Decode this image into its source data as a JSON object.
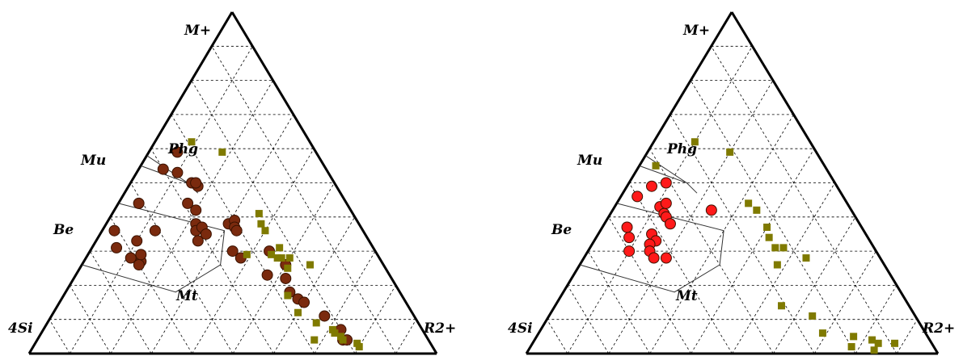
{
  "chart_data": [
    {
      "type": "scatter",
      "ternary": true,
      "grid": true,
      "vertex_labels": {
        "top": "M+",
        "left": "4Si",
        "right": "R2+"
      },
      "field_labels": [
        "Mu",
        "Phg",
        "Be",
        "Mt"
      ],
      "series": [
        {
          "marker": "circle",
          "color": "#7a2a0e",
          "points": [
            [
              0.54,
              0.06
            ],
            [
              0.59,
              0.07
            ],
            [
              0.53,
              0.1
            ],
            [
              0.5,
              0.15
            ],
            [
              0.49,
              0.17
            ],
            [
              0.5,
              0.16
            ],
            [
              0.44,
              0.17
            ],
            [
              0.42,
              0.2
            ],
            [
              0.38,
              0.22
            ],
            [
              0.36,
              0.23
            ],
            [
              0.37,
              0.24
            ],
            [
              0.33,
              0.25
            ],
            [
              0.35,
              0.26
            ],
            [
              0.38,
              0.3
            ],
            [
              0.39,
              0.31
            ],
            [
              0.37,
              0.32
            ],
            [
              0.28,
              0.38
            ],
            [
              0.36,
              0.33
            ],
            [
              0.3,
              0.35
            ],
            [
              0.3,
              0.44
            ],
            [
              0.26,
              0.5
            ],
            [
              0.23,
              0.47
            ],
            [
              0.22,
              0.52
            ],
            [
              0.18,
              0.55
            ],
            [
              0.16,
              0.58
            ],
            [
              0.15,
              0.6
            ],
            [
              0.11,
              0.67
            ],
            [
              0.07,
              0.73
            ],
            [
              0.04,
              0.75
            ],
            [
              0.04,
              0.76
            ],
            [
              0.44,
              0.05
            ],
            [
              0.33,
              0.1
            ],
            [
              0.36,
              0.13
            ],
            [
              0.28,
              0.11
            ],
            [
              0.27,
              0.14
            ],
            [
              0.29,
              0.13
            ],
            [
              0.31,
              0.06
            ],
            [
              0.26,
              0.14
            ],
            [
              0.36,
              0.03
            ]
          ]
        },
        {
          "marker": "square",
          "color": "#7f7a00",
          "points": [
            [
              0.62,
              0.09
            ],
            [
              0.59,
              0.18
            ],
            [
              0.41,
              0.36
            ],
            [
              0.38,
              0.38
            ],
            [
              0.36,
              0.4
            ],
            [
              0.31,
              0.46
            ],
            [
              0.28,
              0.47
            ],
            [
              0.29,
              0.45
            ],
            [
              0.28,
              0.5
            ],
            [
              0.25,
              0.51
            ],
            [
              0.17,
              0.55
            ],
            [
              0.12,
              0.6
            ],
            [
              0.09,
              0.66
            ],
            [
              0.04,
              0.68
            ],
            [
              0.06,
              0.72
            ],
            [
              0.05,
              0.74
            ],
            [
              0.04,
              0.75
            ],
            [
              0.02,
              0.8
            ],
            [
              0.26,
              0.56
            ],
            [
              0.07,
              0.71
            ],
            [
              0.03,
              0.79
            ],
            [
              0.29,
              0.39
            ],
            [
              0.28,
              0.48
            ]
          ]
        }
      ]
    },
    {
      "type": "scatter",
      "ternary": true,
      "grid": true,
      "vertex_labels": {
        "top": "M+",
        "left": "4Si",
        "right": "R2+"
      },
      "field_labels": [
        "Mu",
        "Phg",
        "Be",
        "Mt"
      ],
      "series": [
        {
          "marker": "circle",
          "color": "#ff1a1a",
          "points": [
            [
              0.5,
              0.09
            ],
            [
              0.49,
              0.06
            ],
            [
              0.46,
              0.04
            ],
            [
              0.43,
              0.11
            ],
            [
              0.41,
              0.13
            ],
            [
              0.4,
              0.14
            ],
            [
              0.37,
              0.06
            ],
            [
              0.35,
              0.13
            ],
            [
              0.33,
              0.15
            ],
            [
              0.32,
              0.14
            ],
            [
              0.3,
              0.15
            ],
            [
              0.28,
              0.17
            ],
            [
              0.28,
              0.2
            ],
            [
              0.42,
              0.24
            ],
            [
              0.3,
              0.1
            ],
            [
              0.44,
              0.12
            ],
            [
              0.38,
              0.16
            ],
            [
              0.34,
              0.08
            ]
          ]
        },
        {
          "marker": "square",
          "color": "#7f7a00",
          "points": [
            [
              0.62,
              0.1
            ],
            [
              0.59,
              0.2
            ],
            [
              0.55,
              0.04
            ],
            [
              0.44,
              0.32
            ],
            [
              0.42,
              0.35
            ],
            [
              0.37,
              0.4
            ],
            [
              0.34,
              0.42
            ],
            [
              0.31,
              0.45
            ],
            [
              0.31,
              0.47
            ],
            [
              0.26,
              0.48
            ],
            [
              0.28,
              0.54
            ],
            [
              0.14,
              0.55
            ],
            [
              0.11,
              0.64
            ],
            [
              0.02,
              0.78
            ],
            [
              0.05,
              0.77
            ],
            [
              0.04,
              0.82
            ],
            [
              0.03,
              0.88
            ],
            [
              0.03,
              0.84
            ],
            [
              0.01,
              0.84
            ],
            [
              0.06,
              0.69
            ]
          ]
        }
      ]
    }
  ]
}
